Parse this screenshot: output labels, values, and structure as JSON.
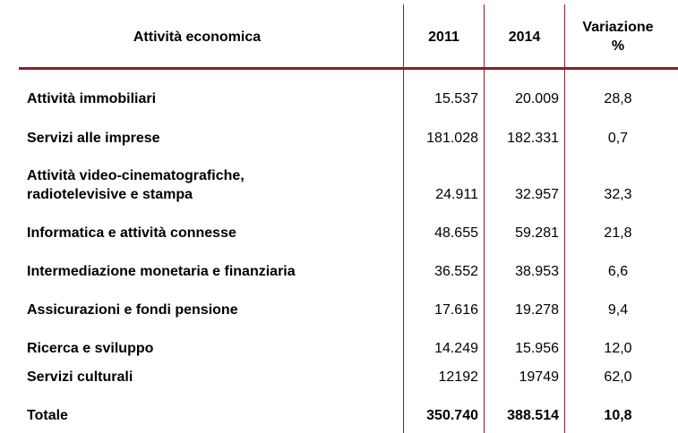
{
  "header": {
    "col_activity": "Attività economica",
    "col_2011": "2011",
    "col_2014": "2014",
    "col_variation_line1": "Variazione",
    "col_variation_line2": "%"
  },
  "rows": [
    {
      "label": "Attività immobiliari",
      "v2011": "15.537",
      "v2014": "20.009",
      "var": "28,8"
    },
    {
      "label": "Servizi alle imprese",
      "v2011": "181.028",
      "v2014": "182.331",
      "var": "0,7"
    },
    {
      "label_line1": "Attività video-cinematografiche,",
      "label_line2": "radiotelevisive e stampa",
      "v2011": "24.911",
      "v2014": "32.957",
      "var": "32,3"
    },
    {
      "label": "Informatica e attività connesse",
      "v2011": "48.655",
      "v2014": "59.281",
      "var": "21,8"
    },
    {
      "label": "Intermediazione monetaria e finanziaria",
      "v2011": "36.552",
      "v2014": "38.953",
      "var": "6,6"
    },
    {
      "label": "Assicurazioni e fondi pensione",
      "v2011": "17.616",
      "v2014": "19.278",
      "var": "9,4"
    },
    {
      "label": "Ricerca e sviluppo",
      "v2011": "14.249",
      "v2014": "15.956",
      "var": "12,0"
    },
    {
      "label": "Servizi culturali",
      "v2011": "12192",
      "v2014": "19749",
      "var": "62,0"
    }
  ],
  "total": {
    "label": "Totale",
    "v2011": "350.740",
    "v2014": "388.514",
    "var": "10,8"
  },
  "colors": {
    "rule": "#8a1f2b",
    "text": "#000000"
  }
}
